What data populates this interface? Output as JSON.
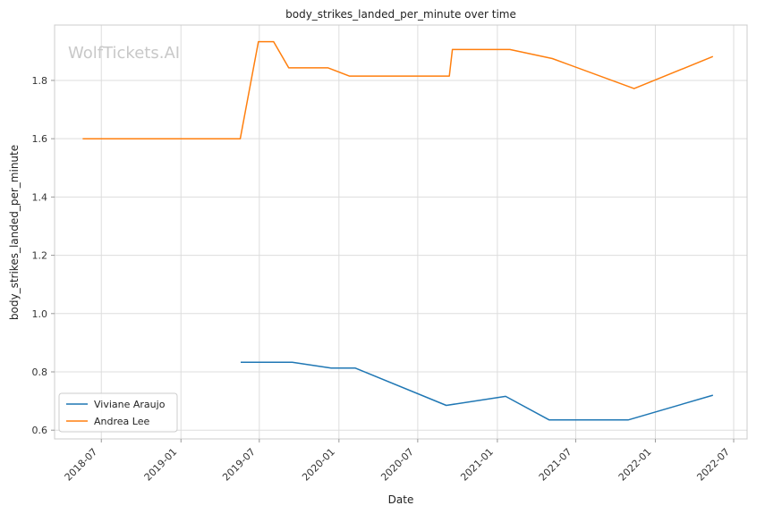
{
  "chart_data": {
    "type": "line",
    "title": "body_strikes_landed_per_minute over time",
    "xlabel": "Date",
    "ylabel": "body_strikes_landed_per_minute",
    "watermark": "WolfTickets.AI",
    "x_ticks": [
      "2018-07",
      "2019-01",
      "2019-07",
      "2020-01",
      "2020-07",
      "2021-01",
      "2021-07",
      "2022-01",
      "2022-07"
    ],
    "y_ticks": [
      0.6,
      0.8,
      1.0,
      1.2,
      1.4,
      1.6,
      1.8
    ],
    "y_tick_labels": [
      "0.6",
      "0.8",
      "1.0",
      "1.2",
      "1.4",
      "1.6",
      "1.8"
    ],
    "xlim": [
      "2018-03-15",
      "2022-08-01"
    ],
    "ylim": [
      0.57,
      1.99
    ],
    "grid": true,
    "legend_position": "lower-left",
    "series": [
      {
        "name": "Viviane Araujo",
        "color": "#1f77b4",
        "points": [
          [
            "2019-05-19",
            0.833
          ],
          [
            "2019-09-15",
            0.833
          ],
          [
            "2019-12-14",
            0.813
          ],
          [
            "2020-02-08",
            0.813
          ],
          [
            "2020-09-05",
            0.685
          ],
          [
            "2021-01-20",
            0.716
          ],
          [
            "2021-05-01",
            0.635
          ],
          [
            "2021-10-30",
            0.635
          ],
          [
            "2022-05-14",
            0.72
          ]
        ]
      },
      {
        "name": "Andrea Lee",
        "color": "#ff7f0e",
        "points": [
          [
            "2018-05-19",
            1.6
          ],
          [
            "2019-05-18",
            1.6
          ],
          [
            "2019-06-29",
            1.933
          ],
          [
            "2019-08-03",
            1.933
          ],
          [
            "2019-09-07",
            1.843
          ],
          [
            "2019-12-07",
            1.843
          ],
          [
            "2020-01-25",
            1.815
          ],
          [
            "2020-09-12",
            1.815
          ],
          [
            "2020-09-19",
            1.906
          ],
          [
            "2021-01-30",
            1.906
          ],
          [
            "2021-05-08",
            1.875
          ],
          [
            "2021-11-13",
            1.772
          ],
          [
            "2022-05-14",
            1.882
          ]
        ]
      }
    ]
  }
}
